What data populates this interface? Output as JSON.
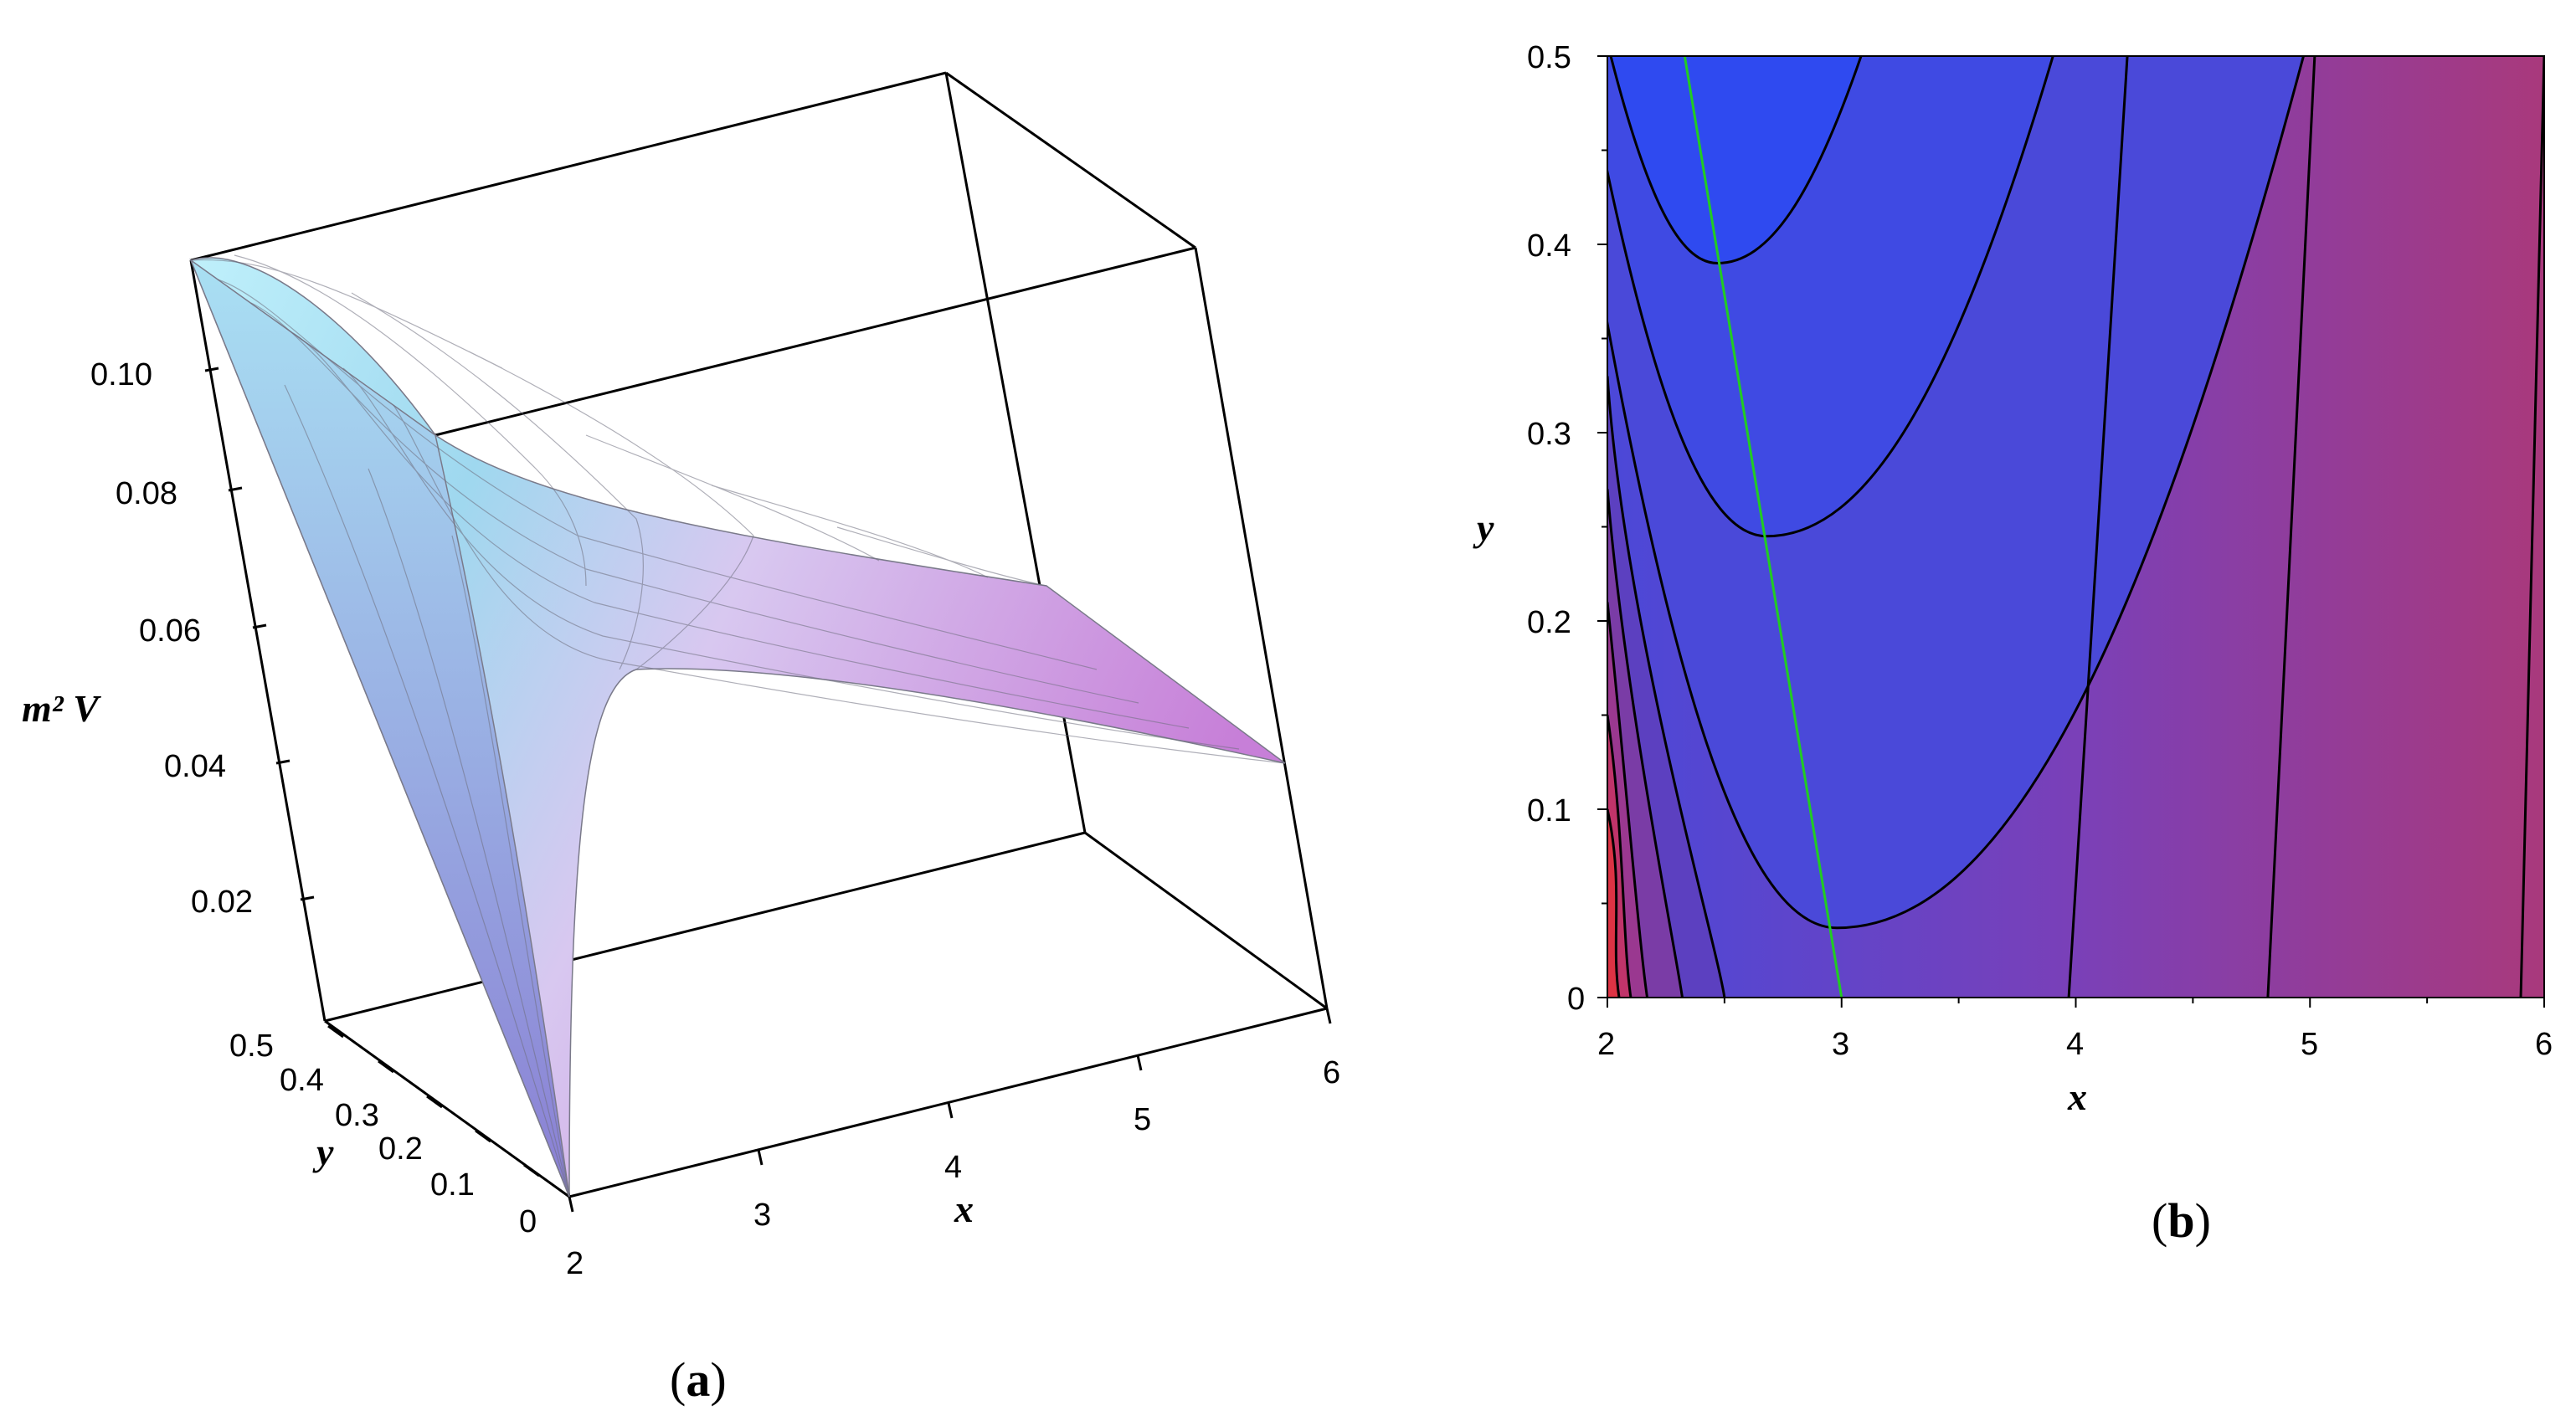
{
  "chart_data": [
    {
      "type": "surface3d",
      "panel_label": "a",
      "zlabel": "m² V",
      "xlabel": "x",
      "ylabel": "y",
      "xlim": [
        2,
        6
      ],
      "ylim": [
        0,
        0.5
      ],
      "zlim": [
        0,
        0.11
      ],
      "x_ticks": [
        "2",
        "3",
        "4",
        "5",
        "6"
      ],
      "y_ticks": [
        "0",
        "0.1",
        "0.2",
        "0.3",
        "0.4",
        "0.5"
      ],
      "z_ticks": [
        "0.02",
        "0.04",
        "0.06",
        "0.08",
        "0.10"
      ],
      "surface_samples": [
        {
          "x": 2,
          "y": 0,
          "z": 0.0
        },
        {
          "x": 2,
          "y": 0.5,
          "z": 0.11
        },
        {
          "x": 3,
          "y": 0.25,
          "z": 0.065
        },
        {
          "x": 6,
          "y": 0,
          "z": 0.052
        },
        {
          "x": 6,
          "y": 0.5,
          "z": 0.05
        }
      ],
      "colors": {
        "low": "#c8a0e8",
        "high": "#a8e8f8",
        "frame": "#000000"
      }
    },
    {
      "type": "contour",
      "panel_label": "b",
      "xlabel": "x",
      "ylabel": "y",
      "xlim": [
        2,
        6
      ],
      "ylim": [
        0,
        0.5
      ],
      "x_ticks": [
        "2",
        "3",
        "4",
        "5",
        "6"
      ],
      "y_ticks": [
        "0",
        "0.1",
        "0.2",
        "0.3",
        "0.4",
        "0.5"
      ],
      "parabola_minima": [
        {
          "x": 2.47,
          "y": 0.39
        },
        {
          "x": 2.68,
          "y": 0.245
        },
        {
          "x": 2.98,
          "y": 0.037
        }
      ],
      "near_vertical_levels": [
        {
          "x_bottom": 3.97,
          "x_top": 4.22
        },
        {
          "x_bottom": 4.82,
          "x_top": 5.02
        },
        {
          "x_bottom": 5.9,
          "x_top": 6.0
        }
      ],
      "left_corner_levels": [
        {
          "x_bottom": 2.05,
          "y_top": 0.1
        },
        {
          "x_bottom": 2.1,
          "y_top": 0.15
        },
        {
          "x_bottom": 2.17,
          "y_top": 0.21
        },
        {
          "x_bottom": 2.32,
          "y_top": 0.27
        },
        {
          "x_bottom": 2.5,
          "y_top": 0.33
        }
      ],
      "minimum_line": {
        "x1": 2.33,
        "y1": 0.5,
        "x2": 3.0,
        "y2": 0.0
      },
      "colors": {
        "line": "#22cc22",
        "fill_low": "#2244ee",
        "fill_high": "#a83a7a",
        "corner": "#dd3344"
      }
    }
  ]
}
